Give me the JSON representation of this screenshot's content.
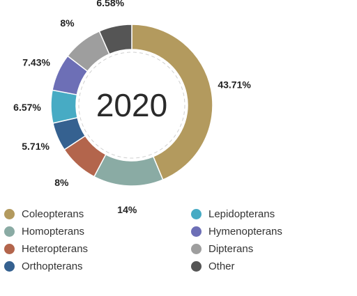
{
  "chart_data": {
    "type": "pie",
    "center_label": "2020",
    "categories": [
      "Coleopterans",
      "Homopterans",
      "Heteropterans",
      "Orthopterans",
      "Lepidopterans",
      "Hymenopterans",
      "Dipterans",
      "Other"
    ],
    "values": [
      43.71,
      14,
      8,
      5.71,
      6.57,
      7.43,
      8,
      6.58
    ],
    "value_labels": [
      "43.71%",
      "14%",
      "8%",
      "5.71%",
      "6.57%",
      "7.43%",
      "8%",
      "6.58%"
    ],
    "colors": [
      "#b39a5e",
      "#8aaba4",
      "#b3654c",
      "#356190",
      "#47abc4",
      "#6d6fb6",
      "#9e9e9e",
      "#555555"
    ],
    "legend_placement": "bottom"
  },
  "legend": {
    "columns": [
      [
        {
          "label": "Coleopterans",
          "color": "#b39a5e"
        },
        {
          "label": "Homopterans",
          "color": "#8aaba4"
        },
        {
          "label": "Heteropterans",
          "color": "#b3654c"
        },
        {
          "label": "Orthopterans",
          "color": "#356190"
        }
      ],
      [
        {
          "label": "Lepidopterans",
          "color": "#47abc4"
        },
        {
          "label": "Hymenopterans",
          "color": "#6d6fb6"
        },
        {
          "label": "Dipterans",
          "color": "#9e9e9e"
        },
        {
          "label": "Other",
          "color": "#555555"
        }
      ]
    ]
  }
}
